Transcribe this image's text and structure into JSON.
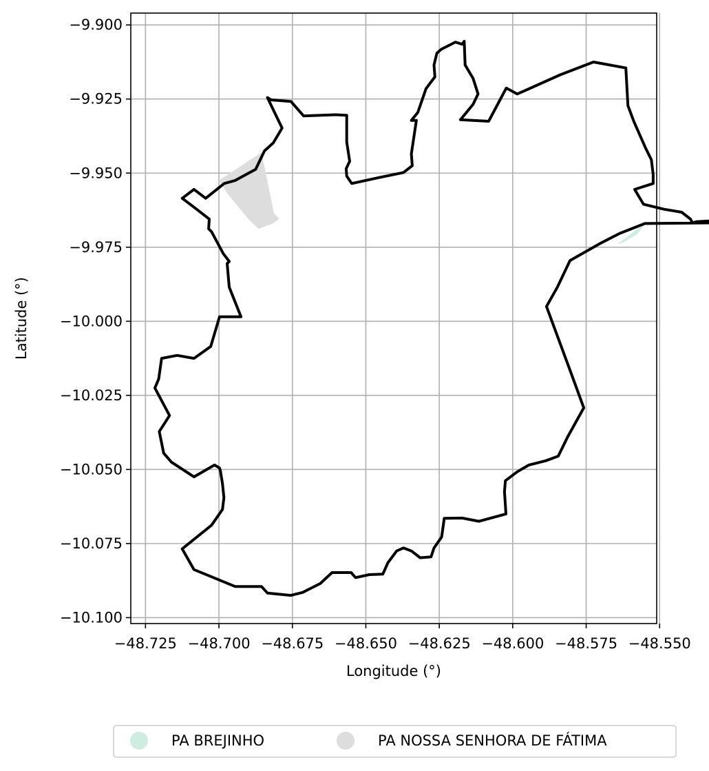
{
  "chart_data": {
    "type": "map",
    "xlabel": "Longitude (°)",
    "ylabel": "Latitude (°)",
    "xlim": [
      -48.73,
      -48.551
    ],
    "ylim": [
      -10.102,
      -9.896
    ],
    "grid": true,
    "legend_position": "bottom-center",
    "x_ticks": [
      -48.725,
      -48.7,
      -48.675,
      -48.65,
      -48.625,
      -48.6,
      -48.575,
      -48.55
    ],
    "x_tick_labels": [
      "−48.725",
      "−48.700",
      "−48.675",
      "−48.650",
      "−48.625",
      "−48.600",
      "−48.575",
      "−48.550"
    ],
    "y_ticks": [
      -9.9,
      -9.925,
      -9.95,
      -9.975,
      -10.0,
      -10.025,
      -10.05,
      -10.075,
      -10.1
    ],
    "y_tick_labels": [
      "−9.900",
      "−9.925",
      "−9.950",
      "−9.975",
      "−10.000",
      "−10.025",
      "−10.050",
      "−10.075",
      "−10.100"
    ],
    "boundary_color": "#000000",
    "categories": [
      {
        "name": "PA BREJINHO",
        "color": "#cfece0"
      },
      {
        "name": "PA NOSSA SENHORA DE FÁTIMA",
        "color": "#dddddd"
      }
    ],
    "patches": [
      {
        "category": "PA NOSSA SENHORA DE FÁTIMA",
        "coords": [
          [
            -48.7,
            -9.9525
          ],
          [
            -48.6855,
            -9.943
          ],
          [
            -48.6813,
            -9.9635
          ],
          [
            -48.6795,
            -9.9655
          ],
          [
            -48.6817,
            -9.967
          ],
          [
            -48.6865,
            -9.9688
          ],
          [
            -48.69,
            -9.9655
          ],
          [
            -48.697,
            -9.957
          ]
        ]
      },
      {
        "category": "PA BREJINHO",
        "coords": [
          [
            -48.5645,
            -9.974
          ],
          [
            -48.555,
            -9.967
          ],
          [
            -48.5575,
            -9.9705
          ],
          [
            -48.5625,
            -9.9735
          ]
        ]
      }
    ],
    "boundary": [
      [
        -48.7045,
        -9.9585
      ],
      [
        -48.6982,
        -9.9535
      ],
      [
        -48.6945,
        -9.9525
      ],
      [
        -48.6875,
        -9.9487
      ],
      [
        -48.6845,
        -9.9425
      ],
      [
        -48.6815,
        -9.9398
      ],
      [
        -48.6785,
        -9.9348
      ],
      [
        -48.6835,
        -9.9245
      ],
      [
        -48.6822,
        -9.9253
      ],
      [
        -48.6755,
        -9.9258
      ],
      [
        -48.6712,
        -9.9307
      ],
      [
        -48.6602,
        -9.9303
      ],
      [
        -48.6565,
        -9.9305
      ],
      [
        -48.6565,
        -9.9395
      ],
      [
        -48.6555,
        -9.946
      ],
      [
        -48.6567,
        -9.9485
      ],
      [
        -48.6565,
        -9.951
      ],
      [
        -48.6548,
        -9.9535
      ],
      [
        -48.6455,
        -9.9515
      ],
      [
        -48.6372,
        -9.9498
      ],
      [
        -48.6342,
        -9.9475
      ],
      [
        -48.6345,
        -9.9435
      ],
      [
        -48.6328,
        -9.9322
      ],
      [
        -48.6345,
        -9.9322
      ],
      [
        -48.6323,
        -9.9295
      ],
      [
        -48.6295,
        -9.9215
      ],
      [
        -48.6265,
        -9.9175
      ],
      [
        -48.6268,
        -9.9135
      ],
      [
        -48.6258,
        -9.9095
      ],
      [
        -48.6243,
        -9.9082
      ],
      [
        -48.6195,
        -9.9058
      ],
      [
        -48.6172,
        -9.9065
      ],
      [
        -48.6165,
        -9.9055
      ],
      [
        -48.6162,
        -9.9135
      ],
      [
        -48.6135,
        -9.918
      ],
      [
        -48.6118,
        -9.9233
      ],
      [
        -48.6135,
        -9.9268
      ],
      [
        -48.6178,
        -9.932
      ],
      [
        -48.6082,
        -9.9325
      ],
      [
        -48.6022,
        -9.9213
      ],
      [
        -48.5985,
        -9.9233
      ],
      [
        -48.5948,
        -9.9217
      ],
      [
        -48.5838,
        -9.9168
      ],
      [
        -48.5725,
        -9.9125
      ],
      [
        -48.5615,
        -9.9145
      ],
      [
        -48.5608,
        -9.9272
      ],
      [
        -48.5588,
        -9.9325
      ],
      [
        -48.5548,
        -9.9415
      ],
      [
        -48.5528,
        -9.9455
      ],
      [
        -48.5522,
        -9.9505
      ],
      [
        -48.5522,
        -9.9535
      ],
      [
        -48.5585,
        -9.9555
      ],
      [
        -48.5555,
        -9.9605
      ],
      [
        -48.5485,
        -9.9622
      ],
      [
        -48.5425,
        -9.9632
      ],
      [
        -48.5395,
        -9.9655
      ],
      [
        -48.5388,
        -9.9668
      ],
      [
        -48.5375,
        -9.9664
      ],
      [
        -48.534,
        -9.9662
      ],
      [
        -48.529,
        -9.966
      ],
      [
        -48.5235,
        -9.9667
      ],
      [
        -48.5225,
        -9.9667
      ],
      [
        -48.555,
        -9.967
      ],
      [
        -48.5635,
        -9.9703
      ],
      [
        -48.5698,
        -9.9735
      ],
      [
        -48.5805,
        -9.9795
      ],
      [
        -48.5848,
        -9.9885
      ],
      [
        -48.5885,
        -9.995
      ],
      [
        -48.5805,
        -10.0165
      ],
      [
        -48.5758,
        -10.0292
      ],
      [
        -48.5813,
        -10.039
      ],
      [
        -48.5845,
        -10.0455
      ],
      [
        -48.5885,
        -10.047
      ],
      [
        -48.5945,
        -10.0485
      ],
      [
        -48.5985,
        -10.0508
      ],
      [
        -48.6025,
        -10.0538
      ],
      [
        -48.6028,
        -10.0575
      ],
      [
        -48.6023,
        -10.065
      ],
      [
        -48.6115,
        -10.0675
      ],
      [
        -48.6172,
        -10.0664
      ],
      [
        -48.6233,
        -10.0665
      ],
      [
        -48.6242,
        -10.0728
      ],
      [
        -48.6268,
        -10.0765
      ],
      [
        -48.6278,
        -10.0795
      ],
      [
        -48.6315,
        -10.0798
      ],
      [
        -48.6345,
        -10.0775
      ],
      [
        -48.6372,
        -10.0765
      ],
      [
        -48.6395,
        -10.0775
      ],
      [
        -48.6425,
        -10.0815
      ],
      [
        -48.6442,
        -10.0853
      ],
      [
        -48.6488,
        -10.0855
      ],
      [
        -48.6535,
        -10.0865
      ],
      [
        -48.655,
        -10.0848
      ],
      [
        -48.6578,
        -10.0848
      ],
      [
        -48.6615,
        -10.0848
      ],
      [
        -48.6655,
        -10.0885
      ],
      [
        -48.6715,
        -10.0915
      ],
      [
        -48.6755,
        -10.0925
      ],
      [
        -48.6835,
        -10.0917
      ],
      [
        -48.6855,
        -10.0895
      ],
      [
        -48.6945,
        -10.0895
      ],
      [
        -48.7085,
        -10.0838
      ],
      [
        -48.7125,
        -10.0768
      ],
      [
        -48.7025,
        -10.0688
      ],
      [
        -48.6988,
        -10.0635
      ],
      [
        -48.6983,
        -10.0595
      ],
      [
        -48.6988,
        -10.0548
      ],
      [
        -48.6995,
        -10.0505
      ],
      [
        -48.6998,
        -10.0495
      ],
      [
        -48.7015,
        -10.0485
      ],
      [
        -48.7085,
        -10.0525
      ],
      [
        -48.7162,
        -10.0475
      ],
      [
        -48.7188,
        -10.0445
      ],
      [
        -48.7203,
        -10.0372
      ],
      [
        -48.7168,
        -10.0318
      ],
      [
        -48.7218,
        -10.0225
      ],
      [
        -48.7205,
        -10.0195
      ],
      [
        -48.7195,
        -10.0125
      ],
      [
        -48.7142,
        -10.0115
      ],
      [
        -48.7085,
        -10.0125
      ],
      [
        -48.7028,
        -10.0085
      ],
      [
        -48.7012,
        -10.0032
      ],
      [
        -48.6998,
        -9.9985
      ],
      [
        -48.6925,
        -9.9985
      ],
      [
        -48.6965,
        -9.9885
      ],
      [
        -48.6972,
        -9.9805
      ],
      [
        -48.6965,
        -9.9798
      ],
      [
        -48.6985,
        -9.9772
      ],
      [
        -48.7025,
        -9.9698
      ],
      [
        -48.7035,
        -9.9688
      ],
      [
        -48.7033,
        -9.9655
      ],
      [
        -48.7085,
        -9.9615
      ],
      [
        -48.7125,
        -9.9585
      ],
      [
        -48.7085,
        -9.9555
      ],
      [
        -48.7045,
        -9.9585
      ]
    ]
  }
}
